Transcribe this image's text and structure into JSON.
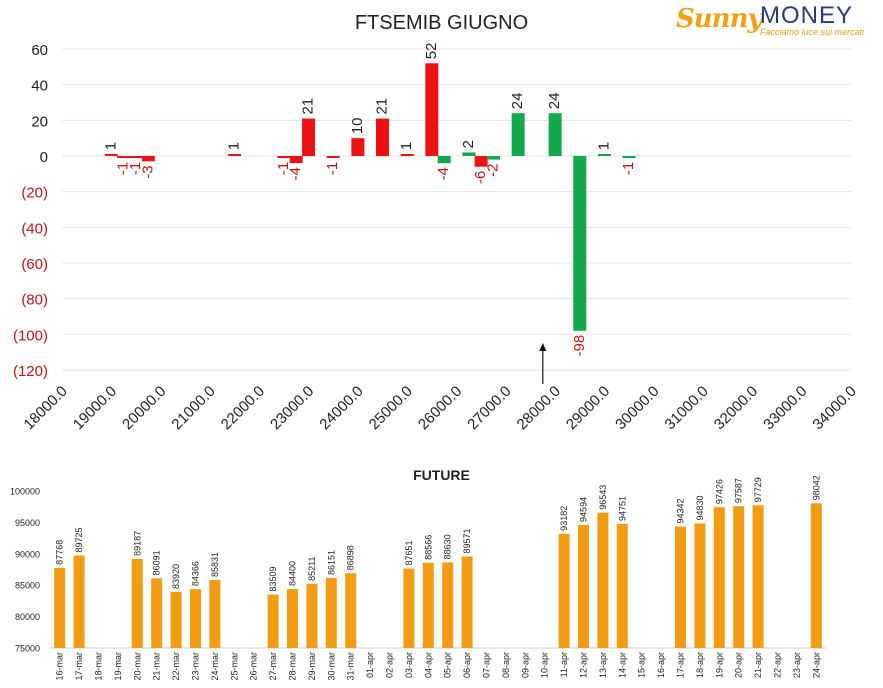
{
  "logo": {
    "brand_sunny": "Sunny",
    "brand_money": "MONEY",
    "tagline": "Facciamo luce sui mercati"
  },
  "colors": {
    "positive_bar": "#ee1111",
    "negative_bar": "#12a84c",
    "future_bar": "#f39c12",
    "negative_tick": "#cc1111",
    "axis_text": "#222222"
  },
  "chart_data": [
    {
      "type": "bar",
      "title": "FTSEMIB GIUGNO",
      "xlim": [
        18000,
        34000
      ],
      "ylim": [
        -120,
        60
      ],
      "grid": true,
      "y_ticks": [
        60,
        40,
        20,
        0,
        -20,
        -40,
        -60,
        -80,
        -100,
        -120
      ],
      "y_tick_labels": [
        "60",
        "40",
        "20",
        "0",
        "(20)",
        "(40)",
        "(60)",
        "(80)",
        "(100)",
        "(120)"
      ],
      "x_tick_labels": [
        "18000.0",
        "19000.0",
        "20000.0",
        "21000.0",
        "22000.0",
        "23000.0",
        "24000.0",
        "25000.0",
        "26000.0",
        "27000.0",
        "28000.0",
        "29000.0",
        "30000.0",
        "31000.0",
        "32000.0",
        "33000.0",
        "34000.0"
      ],
      "current_price_marker": 27750,
      "series": [
        {
          "values": [
            {
              "x": 19000,
              "y": 1
            },
            {
              "x": 19250,
              "y": -1
            },
            {
              "x": 19500,
              "y": -1
            },
            {
              "x": 19750,
              "y": -3
            },
            {
              "x": 21500,
              "y": 1
            },
            {
              "x": 22500,
              "y": -1
            },
            {
              "x": 22750,
              "y": -4
            },
            {
              "x": 23000,
              "y": 21
            },
            {
              "x": 23500,
              "y": -1
            },
            {
              "x": 24000,
              "y": 10
            },
            {
              "x": 24500,
              "y": 21
            },
            {
              "x": 25000,
              "y": 1
            },
            {
              "x": 25500,
              "y": 52
            },
            {
              "x": 26500,
              "y": -6
            }
          ]
        },
        {
          "values": [
            {
              "x": 25750,
              "y": -4
            },
            {
              "x": 26250,
              "y": 2
            },
            {
              "x": 26750,
              "y": -2
            },
            {
              "x": 27250,
              "y": 24
            },
            {
              "x": 28000,
              "y": 24
            },
            {
              "x": 28500,
              "y": -98
            },
            {
              "x": 29000,
              "y": 1
            },
            {
              "x": 29500,
              "y": -1
            }
          ]
        }
      ]
    },
    {
      "type": "bar",
      "title": "FUTURE",
      "ylim": [
        75000,
        100000
      ],
      "y_ticks": [
        75000,
        80000,
        85000,
        90000,
        95000,
        100000
      ],
      "categories": [
        "16-mar",
        "17-mar",
        "18-mar",
        "19-mar",
        "20-mar",
        "21-mar",
        "22-mar",
        "23-mar",
        "24-mar",
        "25-mar",
        "26-mar",
        "27-mar",
        "28-mar",
        "29-mar",
        "30-mar",
        "31-mar",
        "01-apr",
        "02-apr",
        "03-apr",
        "04-apr",
        "05-apr",
        "06-apr",
        "07-apr",
        "08-apr",
        "09-apr",
        "10-apr",
        "11-apr",
        "12-apr",
        "13-apr",
        "14-apr",
        "15-apr",
        "16-apr",
        "17-apr",
        "18-apr",
        "19-apr",
        "20-apr",
        "21-apr",
        "22-apr",
        "23-apr",
        "24-apr"
      ],
      "values": [
        87768,
        89725,
        null,
        null,
        89187,
        86091,
        83920,
        84366,
        85831,
        null,
        null,
        83509,
        84400,
        85211,
        86151,
        86898,
        null,
        null,
        87651,
        88566,
        88630,
        89571,
        null,
        null,
        null,
        null,
        93182,
        94594,
        96543,
        94751,
        null,
        null,
        94342,
        94830,
        97426,
        97587,
        97729,
        null,
        null,
        98042
      ]
    }
  ]
}
